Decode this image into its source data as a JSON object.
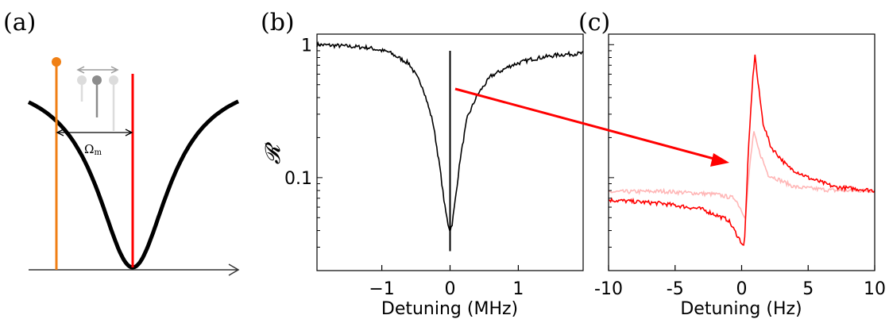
{
  "panel_labels": {
    "a": "(a)",
    "b": "(b)",
    "c": "(c)"
  },
  "colors": {
    "orange": "#f07f14",
    "red": "#ff0000",
    "red_light": "#ffb6b6",
    "grey_dark": "#8c8c8c",
    "grey_mid": "#bdbdbd",
    "grey_light": "#dcdcdc",
    "black": "#000000"
  },
  "schematic": {
    "omega_label": "Ω",
    "omega_sub": "m"
  },
  "chart_data": [
    {
      "panel": "(b)",
      "type": "line",
      "xlabel": "Detuning (MHz)",
      "ylabel": "𝓡",
      "yscale": "log",
      "xlim": [
        -1.95,
        1.95
      ],
      "ylim": [
        0.02,
        1.2
      ],
      "xticks": [
        -1,
        0,
        1
      ],
      "xtick_labels": [
        "−1",
        "0",
        "1"
      ],
      "yticks": [
        0.1,
        1
      ],
      "ytick_labels": [
        "0.1",
        "1"
      ],
      "series": [
        {
          "color": "#000000",
          "x": [
            -1.95,
            -1.6,
            -1.2,
            -0.9,
            -0.6,
            -0.4,
            -0.25,
            -0.15,
            -0.08,
            -0.03,
            0.0,
            0.03,
            0.08,
            0.15,
            0.25,
            0.4,
            0.6,
            0.9,
            1.2,
            1.6,
            1.95
          ],
          "y": [
            1.0,
            0.98,
            0.95,
            0.88,
            0.72,
            0.48,
            0.26,
            0.12,
            0.062,
            0.045,
            0.04,
            0.045,
            0.07,
            0.14,
            0.28,
            0.42,
            0.58,
            0.7,
            0.78,
            0.84,
            0.86
          ]
        }
      ],
      "annotation": {
        "type": "spike",
        "x": 0.0,
        "y_from": 0.028,
        "y_to": 0.9
      }
    },
    {
      "panel": "(c)",
      "type": "line",
      "xlabel": "Detuning (Hz)",
      "yscale": "log",
      "xlim": [
        -10,
        10
      ],
      "ylim": [
        0.02,
        1.2
      ],
      "xticks": [
        -10,
        -5,
        0,
        5,
        10
      ],
      "xtick_labels": [
        "-10",
        "-5",
        "0",
        "5",
        "10"
      ],
      "series": [
        {
          "color": "#ffb6b6",
          "x": [
            -10,
            -6,
            -2,
            -0.5,
            0.3,
            0.6,
            0.9,
            1.3,
            2,
            4,
            7,
            10
          ],
          "y": [
            0.078,
            0.079,
            0.075,
            0.07,
            0.05,
            0.12,
            0.22,
            0.16,
            0.105,
            0.085,
            0.08,
            0.08
          ]
        },
        {
          "color": "#ff0000",
          "x": [
            -10,
            -6,
            -3,
            -1,
            -0.2,
            0.2,
            0.5,
            0.8,
            1.0,
            1.2,
            1.6,
            2.2,
            3.5,
            5,
            7,
            10
          ],
          "y": [
            0.068,
            0.064,
            0.058,
            0.048,
            0.035,
            0.03,
            0.15,
            0.5,
            0.85,
            0.55,
            0.26,
            0.17,
            0.12,
            0.1,
            0.085,
            0.08
          ]
        }
      ]
    }
  ]
}
